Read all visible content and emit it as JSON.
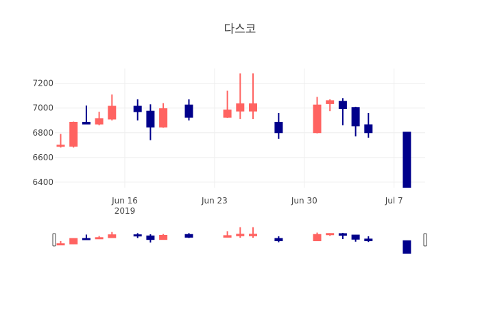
{
  "chart_data": {
    "type": "candlestick",
    "title": "다스코",
    "increasing_color": "#ff6361",
    "decreasing_color": "#00008b",
    "y_range": [
      6355,
      7320
    ],
    "y_ticks": [
      6400,
      6600,
      6800,
      7000,
      7200
    ],
    "y_tick_labels": [
      "6400",
      "6600",
      "6800",
      "7000",
      "7200"
    ],
    "x_range_days": [
      10.9,
      38.3
    ],
    "x_ticks": [
      {
        "day": 16,
        "label": "Jun 16",
        "sublabel": "2019"
      },
      {
        "day": 23,
        "label": "Jun 23",
        "sublabel": ""
      },
      {
        "day": 30,
        "label": "Jun 30",
        "sublabel": ""
      },
      {
        "day": 37,
        "label": "Jul 7",
        "sublabel": ""
      }
    ],
    "candles": [
      {
        "day": 11,
        "open": 6690,
        "high": 6790,
        "low": 6680,
        "close": 6700
      },
      {
        "day": 12,
        "open": 6690,
        "high": 6890,
        "low": 6680,
        "close": 6885
      },
      {
        "day": 13,
        "open": 6885,
        "high": 7020,
        "low": 6870,
        "close": 6870
      },
      {
        "day": 14,
        "open": 6870,
        "high": 6970,
        "low": 6860,
        "close": 6915
      },
      {
        "day": 15,
        "open": 6910,
        "high": 7110,
        "low": 6900,
        "close": 7015
      },
      {
        "day": 17,
        "open": 7015,
        "high": 7070,
        "low": 6900,
        "close": 6970
      },
      {
        "day": 18,
        "open": 6975,
        "high": 7030,
        "low": 6740,
        "close": 6845
      },
      {
        "day": 19,
        "open": 6845,
        "high": 7040,
        "low": 6840,
        "close": 6995
      },
      {
        "day": 21,
        "open": 7025,
        "high": 7070,
        "low": 6900,
        "close": 6925
      },
      {
        "day": 24,
        "open": 6925,
        "high": 7140,
        "low": 6920,
        "close": 6985
      },
      {
        "day": 25,
        "open": 6975,
        "high": 7280,
        "low": 6910,
        "close": 7035
      },
      {
        "day": 26,
        "open": 6975,
        "high": 7280,
        "low": 6910,
        "close": 7035
      },
      {
        "day": 28,
        "open": 6885,
        "high": 6960,
        "low": 6750,
        "close": 6800
      },
      {
        "day": 31,
        "open": 6800,
        "high": 7090,
        "low": 6795,
        "close": 7025
      },
      {
        "day": 32,
        "open": 7035,
        "high": 7070,
        "low": 6975,
        "close": 7060
      },
      {
        "day": 33,
        "open": 7055,
        "high": 7080,
        "low": 6860,
        "close": 6995
      },
      {
        "day": 34,
        "open": 7005,
        "high": 7010,
        "low": 6770,
        "close": 6855
      },
      {
        "day": 35,
        "open": 6865,
        "high": 6960,
        "low": 6760,
        "close": 6800
      },
      {
        "day": 38,
        "open": 6805,
        "high": 6805,
        "low": 6355,
        "close": 6355
      }
    ]
  }
}
